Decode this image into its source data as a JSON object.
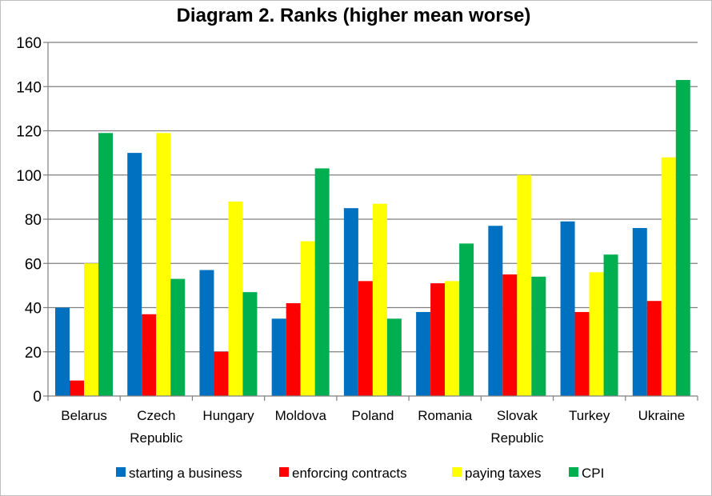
{
  "chart_data": {
    "type": "bar",
    "title": "Diagram 2. Ranks (higher mean worse)",
    "xlabel": "",
    "ylabel": "",
    "ylim": [
      0,
      160
    ],
    "yticks": [
      0,
      20,
      40,
      60,
      80,
      100,
      120,
      140,
      160
    ],
    "grid": true,
    "legend_position": "bottom",
    "categories": [
      "Belarus",
      "Czech Republic",
      "Hungary",
      "Moldova",
      "Poland",
      "Romania",
      "Slovak Republic",
      "Turkey",
      "Ukraine"
    ],
    "category_lines": [
      [
        "Belarus"
      ],
      [
        "Czech",
        "Republic"
      ],
      [
        "Hungary"
      ],
      [
        "Moldova"
      ],
      [
        "Poland"
      ],
      [
        "Romania"
      ],
      [
        "Slovak",
        "Republic"
      ],
      [
        "Turkey"
      ],
      [
        "Ukraine"
      ]
    ],
    "series": [
      {
        "name": "starting a business",
        "color": "#0070C0",
        "values": [
          40,
          110,
          57,
          35,
          85,
          38,
          77,
          79,
          76
        ]
      },
      {
        "name": "enforcing contracts",
        "color": "#FF0000",
        "values": [
          7,
          37,
          20,
          42,
          52,
          51,
          55,
          38,
          43
        ]
      },
      {
        "name": "paying taxes",
        "color": "#FFFF00",
        "values": [
          60,
          119,
          88,
          70,
          87,
          52,
          100,
          56,
          108
        ]
      },
      {
        "name": "CPI",
        "color": "#00B050",
        "values": [
          119,
          53,
          47,
          103,
          35,
          69,
          54,
          64,
          143
        ]
      }
    ]
  }
}
